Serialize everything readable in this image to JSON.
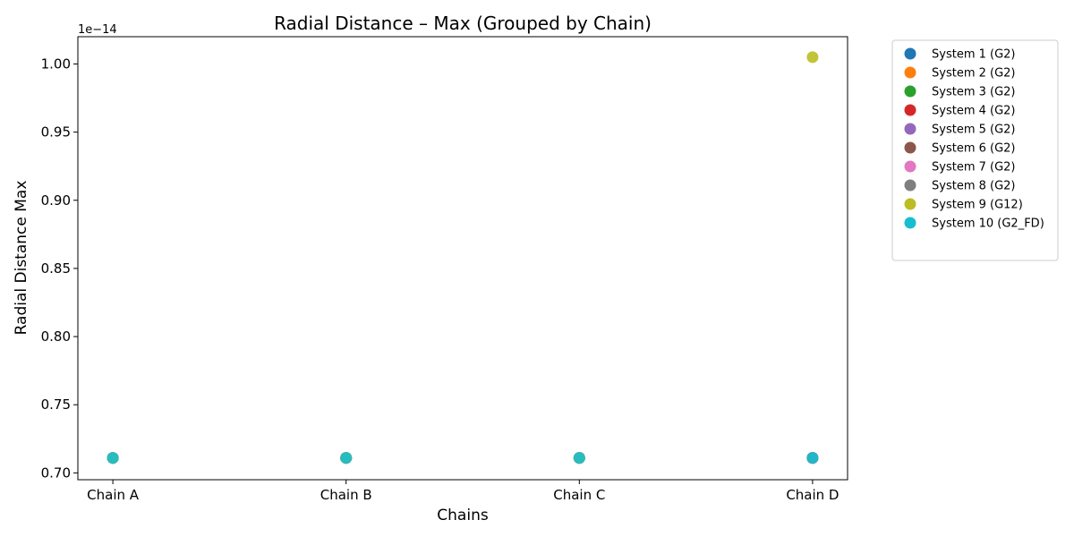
{
  "chart_data": {
    "type": "scatter",
    "title": "Radial Distance – Max (Grouped by Chain)",
    "xlabel": "Chains",
    "ylabel": "Radial Distance Max",
    "y_offset_text": "1e−14",
    "y_scale_factor": 1e-14,
    "categories": [
      "Chain A",
      "Chain B",
      "Chain C",
      "Chain D"
    ],
    "ylim": [
      0.695,
      1.02
    ],
    "yticks": [
      0.7,
      0.75,
      0.8,
      0.85,
      0.9,
      0.95,
      1.0
    ],
    "ytick_labels": [
      "0.70",
      "0.75",
      "0.80",
      "0.85",
      "0.90",
      "0.95",
      "1.00"
    ],
    "grid": false,
    "legend_position": "outside-right",
    "series": [
      {
        "name": "System 1 (G2)",
        "color": "#1f77b4",
        "values": [
          0.711,
          0.711,
          0.711,
          0.711
        ]
      },
      {
        "name": "System 2 (G2)",
        "color": "#ff7f0e",
        "values": [
          0.711,
          0.711,
          0.711,
          0.711
        ]
      },
      {
        "name": "System 3 (G2)",
        "color": "#2ca02c",
        "values": [
          0.711,
          0.711,
          0.711,
          0.711
        ]
      },
      {
        "name": "System 4 (G2)",
        "color": "#d62728",
        "values": [
          0.711,
          0.711,
          0.711,
          0.711
        ]
      },
      {
        "name": "System 5 (G2)",
        "color": "#9467bd",
        "values": [
          0.711,
          0.711,
          0.711,
          0.711
        ]
      },
      {
        "name": "System 6 (G2)",
        "color": "#8c564b",
        "values": [
          0.711,
          0.711,
          0.711,
          0.711
        ]
      },
      {
        "name": "System 7 (G2)",
        "color": "#e377c2",
        "values": [
          0.711,
          0.711,
          0.711,
          0.711
        ]
      },
      {
        "name": "System 8 (G2)",
        "color": "#7f7f7f",
        "values": [
          0.711,
          0.711,
          0.711,
          0.711
        ]
      },
      {
        "name": "System 9 (G12)",
        "color": "#bcbd22",
        "values": [
          0.711,
          0.711,
          0.711,
          1.005
        ]
      },
      {
        "name": "System 10 (G2_FD)",
        "color": "#17becf",
        "values": [
          0.711,
          0.711,
          0.711,
          0.711
        ]
      }
    ]
  }
}
